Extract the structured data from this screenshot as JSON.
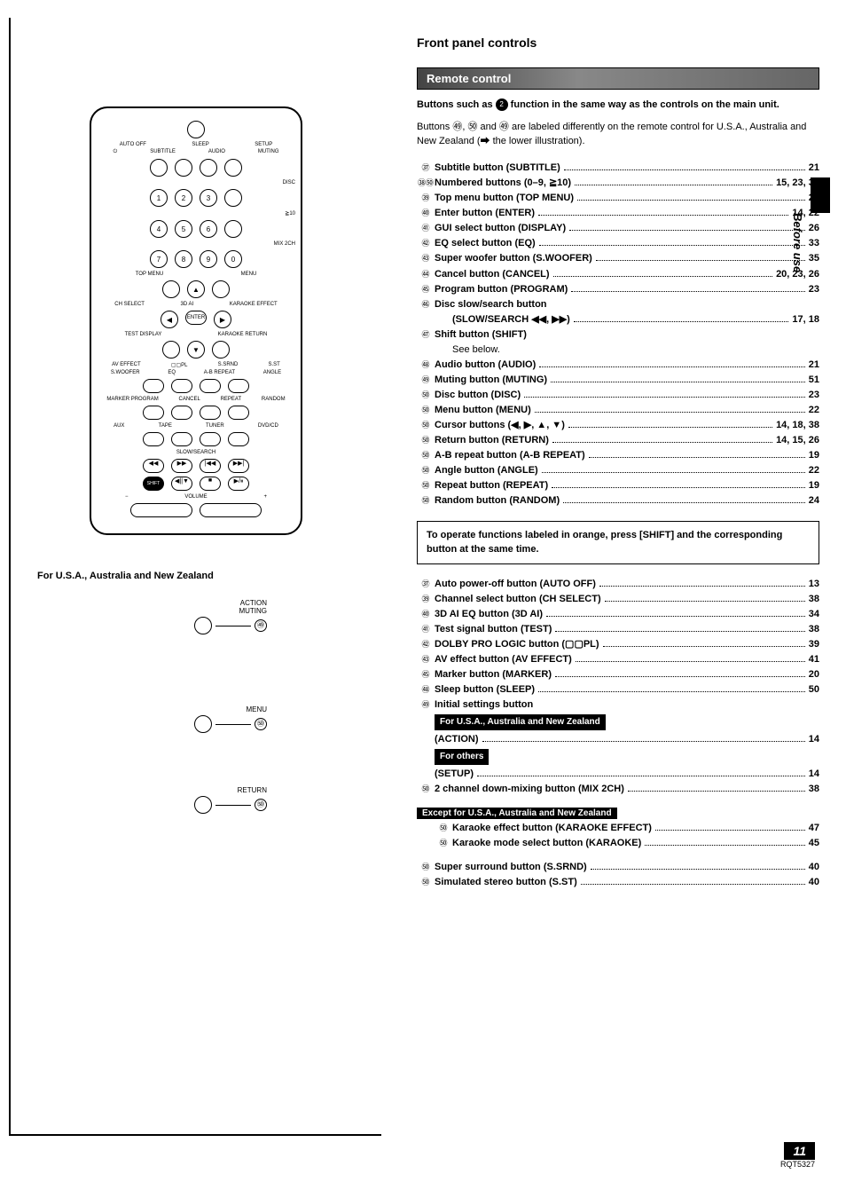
{
  "page": {
    "title": "Front panel controls",
    "subsection": "Remote control",
    "side_tab": "Before use",
    "page_number": "11",
    "doc_code": "RQT5327"
  },
  "intro": {
    "line1_a": "Buttons such as ",
    "line1_b": " function in the same way as the controls on the main unit.",
    "line2": "Buttons ㊾, ㊿ and ㊾ are labeled differently on the remote control for U.S.A., Australia and New Zealand (➡ the lower illustration)."
  },
  "list1": [
    {
      "n": "㊲",
      "label": "Subtitle button (SUBTITLE)",
      "ref": "21"
    },
    {
      "n": "㊳㊿",
      "label": "Numbered buttons (0–9, ≧10)",
      "ref": "15, 23, 30"
    },
    {
      "n": "㊴",
      "label": "Top menu button (TOP MENU)",
      "ref": "22"
    },
    {
      "n": "㊵",
      "label": "Enter button (ENTER)",
      "ref": "14, 22"
    },
    {
      "n": "㊶",
      "label": "GUI select button (DISPLAY)",
      "ref": "26"
    },
    {
      "n": "㊷",
      "label": "EQ select button (EQ)",
      "ref": "33"
    },
    {
      "n": "㊸",
      "label": "Super woofer button (S.WOOFER)",
      "ref": "35"
    },
    {
      "n": "㊹",
      "label": "Cancel button (CANCEL)",
      "ref": "20, 23, 26"
    },
    {
      "n": "㊺",
      "label": "Program button (PROGRAM)",
      "ref": "23"
    },
    {
      "n": "㊻",
      "label": "Disc slow/search button",
      "ref": ""
    },
    {
      "n": "",
      "label": "(SLOW/SEARCH ◀◀, ▶▶)",
      "ref": "17, 18",
      "sub": true
    },
    {
      "n": "㊼",
      "label": "Shift button (SHIFT)",
      "ref": ""
    },
    {
      "n": "",
      "label": "See below.",
      "ref": "",
      "sub": true,
      "plain": true
    },
    {
      "n": "㊽",
      "label": "Audio button (AUDIO)",
      "ref": "21"
    },
    {
      "n": "㊾",
      "label": "Muting button (MUTING)",
      "ref": "51"
    },
    {
      "n": "㊿",
      "label": "Disc button (DISC)",
      "ref": "23"
    },
    {
      "n": "㊿",
      "label": "Menu button (MENU)",
      "ref": "22"
    },
    {
      "n": "㊿",
      "label": "Cursor buttons (◀, ▶, ▲, ▼)",
      "ref": "14, 18, 38"
    },
    {
      "n": "㊿",
      "label": "Return button (RETURN)",
      "ref": "14, 15, 26"
    },
    {
      "n": "㊿",
      "label": "A-B repeat button (A-B REPEAT)",
      "ref": "19"
    },
    {
      "n": "㊿",
      "label": "Angle button (ANGLE)",
      "ref": "22"
    },
    {
      "n": "㊿",
      "label": "Repeat button (REPEAT)",
      "ref": "19"
    },
    {
      "n": "㊿",
      "label": "Random button (RANDOM)",
      "ref": "24"
    }
  ],
  "note_box": "To operate functions labeled in orange, press [SHIFT] and the corresponding button at the same time.",
  "list2": [
    {
      "n": "㊲",
      "label": "Auto power-off button (AUTO OFF)",
      "ref": "13"
    },
    {
      "n": "㊴",
      "label": "Channel select button (CH SELECT)",
      "ref": "38"
    },
    {
      "n": "㊵",
      "label": "3D AI EQ button (3D AI)",
      "ref": "34"
    },
    {
      "n": "㊶",
      "label": "Test signal button (TEST)",
      "ref": "38"
    },
    {
      "n": "㊷",
      "label": "DOLBY PRO LOGIC button (▢▢PL)",
      "ref": "39"
    },
    {
      "n": "㊸",
      "label": "AV effect button (AV EFFECT)",
      "ref": "41"
    },
    {
      "n": "㊺",
      "label": "Marker button (MARKER)",
      "ref": "20"
    },
    {
      "n": "㊽",
      "label": "Sleep button (SLEEP)",
      "ref": "50"
    },
    {
      "n": "㊾",
      "label": "Initial settings button",
      "ref": ""
    }
  ],
  "region1": {
    "tag": "For U.S.A., Australia and New Zealand",
    "label": "(ACTION)",
    "ref": "14"
  },
  "region2": {
    "tag": "For others",
    "label": "(SETUP)",
    "ref": "14"
  },
  "list2b": [
    {
      "n": "㊿",
      "label": "2 channel down-mixing button (MIX 2CH)",
      "ref": "38"
    }
  ],
  "except": {
    "tag": "Except for U.S.A., Australia and New Zealand",
    "items": [
      {
        "n": "㊿",
        "label": "Karaoke effect button (KARAOKE EFFECT)",
        "ref": "47"
      },
      {
        "n": "㊿",
        "label": "Karaoke mode select button (KARAOKE)",
        "ref": "45"
      }
    ]
  },
  "list3": [
    {
      "n": "㊿",
      "label": "Super surround button (S.SRND)",
      "ref": "40"
    },
    {
      "n": "㊿",
      "label": "Simulated stereo button (S.ST)",
      "ref": "40"
    }
  ],
  "diagram": {
    "variant_caption": "For U.S.A., Australia and New Zealand",
    "variant_labels": {
      "action_muting": "ACTION\nMUTING",
      "menu": "MENU",
      "return": "RETURN"
    },
    "callouts": {
      "c49": "㊾",
      "c52": "㊿",
      "c54": "㊿"
    },
    "labels": {
      "auto_off": "AUTO OFF",
      "sleep": "SLEEP",
      "audio": "AUDIO",
      "setup": "SETUP",
      "subtitle": "SUBTITLE",
      "muting": "MUTING",
      "disc": "DISC",
      "ge10": "≧10",
      "mix2ch": "MIX 2CH",
      "top_menu": "TOP MENU",
      "menu": "MENU",
      "ch_select": "CH SELECT",
      "3dai": "3D AI",
      "karaoke_effect": "KARAOKE EFFECT",
      "test_display": "TEST DISPLAY",
      "enter": "ENTER",
      "karaoke_return": "KARAOKE RETURN",
      "av_effect": "AV EFFECT",
      "swoofer": "S.WOOFER",
      "dpl": "▢▢PL",
      "eq": "EQ",
      "ssrnd": "S.SRND",
      "ab_repeat": "A-B REPEAT",
      "sst": "S.ST",
      "angle": "ANGLE",
      "marker_program": "MARKER PROGRAM",
      "cancel": "CANCEL",
      "repeat": "REPEAT",
      "random": "RANDOM",
      "aux": "AUX",
      "tape": "TAPE",
      "tuner": "TUNER",
      "dvdcd": "DVD/CD",
      "slow_search": "SLOW/SEARCH",
      "shift": "SHIFT",
      "volume": "VOLUME"
    }
  }
}
